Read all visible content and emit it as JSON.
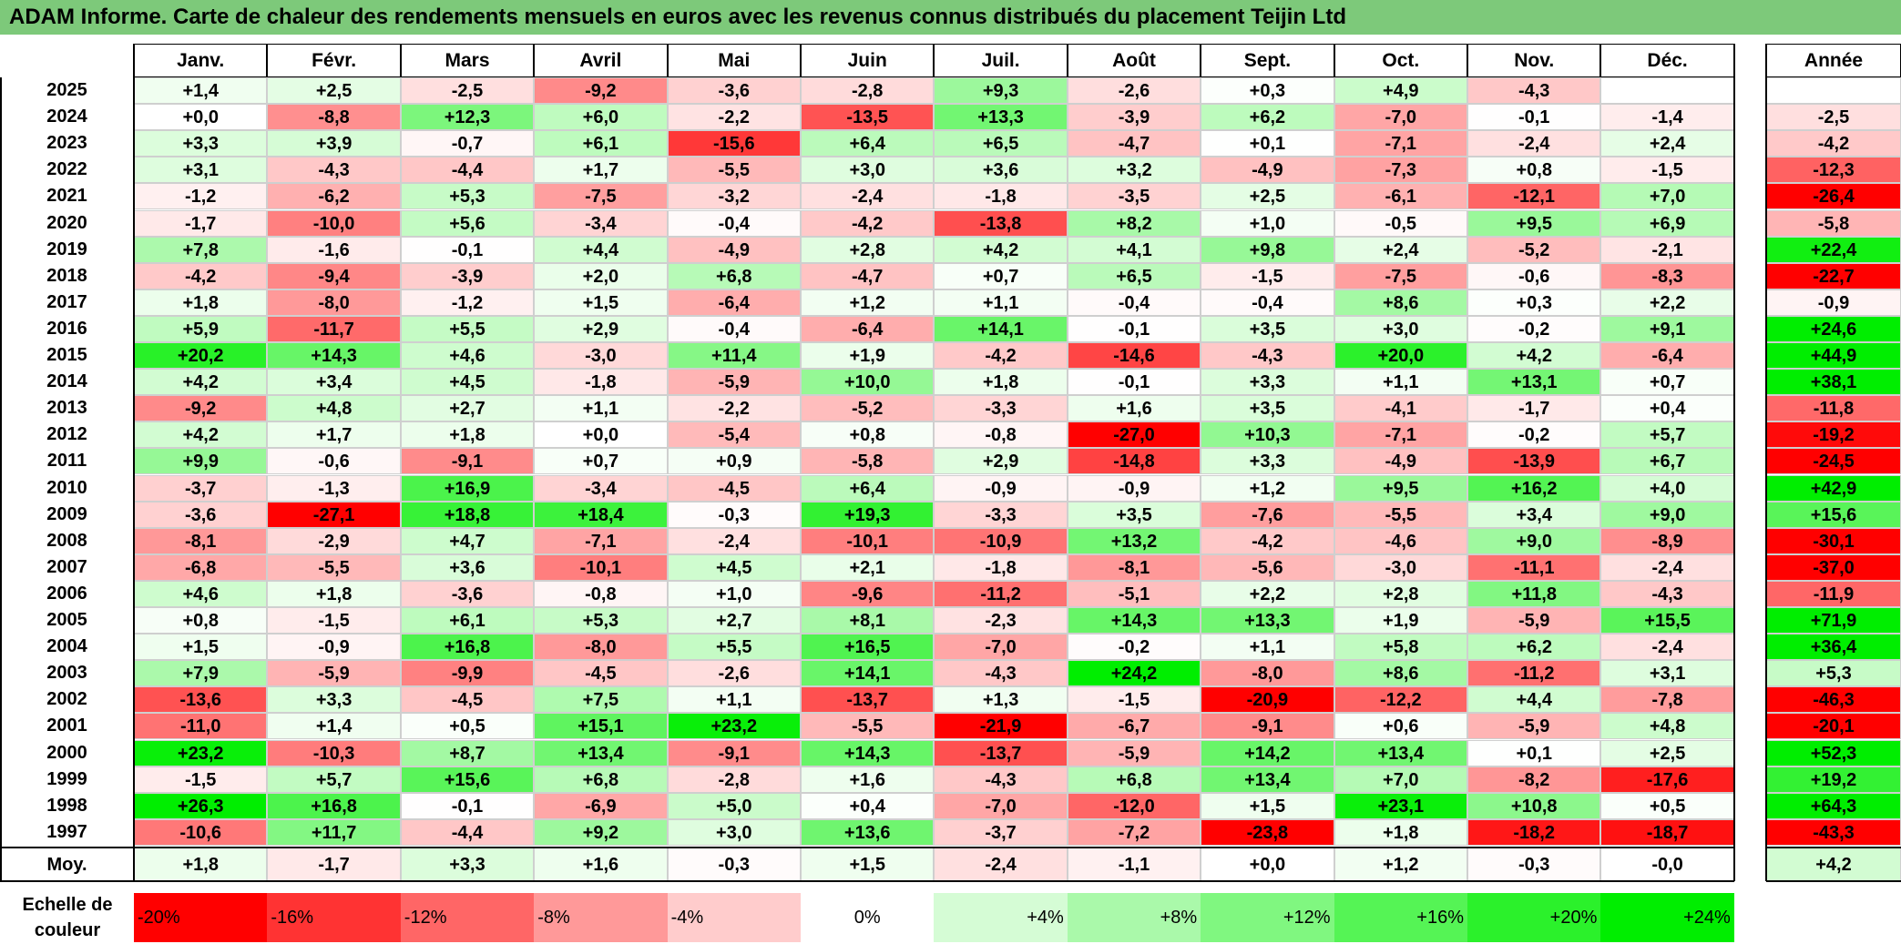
{
  "title": "ADAM Informe. Carte de chaleur des rendements mensuels en euros avec les revenus connus distribués du placement Teijin Ltd",
  "chart_data": {
    "type": "heatmap",
    "title": "ADAM Informe. Carte de chaleur des rendements mensuels en euros avec les revenus connus distribués du placement Teijin Ltd",
    "columns": [
      "Janv.",
      "Févr.",
      "Mars",
      "Avril",
      "Mai",
      "Juin",
      "Juil.",
      "Août",
      "Sept.",
      "Oct.",
      "Nov.",
      "Déc."
    ],
    "annual_header": "Année",
    "rows": [
      {
        "year": "2025",
        "values": [
          "+1,4",
          "+2,5",
          "-2,5",
          "-9,2",
          "-3,6",
          "-2,8",
          "+9,3",
          "-2,6",
          "+0,3",
          "+4,9",
          "-4,3",
          ""
        ],
        "annual": ""
      },
      {
        "year": "2024",
        "values": [
          "+0,0",
          "-8,8",
          "+12,3",
          "+6,0",
          "-2,2",
          "-13,5",
          "+13,3",
          "-3,9",
          "+6,2",
          "-7,0",
          "-0,1",
          "-1,4"
        ],
        "annual": "-2,5"
      },
      {
        "year": "2023",
        "values": [
          "+3,3",
          "+3,9",
          "-0,7",
          "+6,1",
          "-15,6",
          "+6,4",
          "+6,5",
          "-4,7",
          "+0,1",
          "-7,1",
          "-2,4",
          "+2,4"
        ],
        "annual": "-4,2"
      },
      {
        "year": "2022",
        "values": [
          "+3,1",
          "-4,3",
          "-4,4",
          "+1,7",
          "-5,5",
          "+3,0",
          "+3,6",
          "+3,2",
          "-4,9",
          "-7,3",
          "+0,8",
          "-1,5"
        ],
        "annual": "-12,3"
      },
      {
        "year": "2021",
        "values": [
          "-1,2",
          "-6,2",
          "+5,3",
          "-7,5",
          "-3,2",
          "-2,4",
          "-1,8",
          "-3,5",
          "+2,5",
          "-6,1",
          "-12,1",
          "+7,0"
        ],
        "annual": "-26,4"
      },
      {
        "year": "2020",
        "values": [
          "-1,7",
          "-10,0",
          "+5,6",
          "-3,4",
          "-0,4",
          "-4,2",
          "-13,8",
          "+8,2",
          "+1,0",
          "-0,5",
          "+9,5",
          "+6,9"
        ],
        "annual": "-5,8"
      },
      {
        "year": "2019",
        "values": [
          "+7,8",
          "-1,6",
          "-0,1",
          "+4,4",
          "-4,9",
          "+2,8",
          "+4,2",
          "+4,1",
          "+9,8",
          "+2,4",
          "-5,2",
          "-2,1"
        ],
        "annual": "+22,4"
      },
      {
        "year": "2018",
        "values": [
          "-4,2",
          "-9,4",
          "-3,9",
          "+2,0",
          "+6,8",
          "-4,7",
          "+0,7",
          "+6,5",
          "-1,5",
          "-7,5",
          "-0,6",
          "-8,3"
        ],
        "annual": "-22,7"
      },
      {
        "year": "2017",
        "values": [
          "+1,8",
          "-8,0",
          "-1,2",
          "+1,5",
          "-6,4",
          "+1,2",
          "+1,1",
          "-0,4",
          "-0,4",
          "+8,6",
          "+0,3",
          "+2,2"
        ],
        "annual": "-0,9"
      },
      {
        "year": "2016",
        "values": [
          "+5,9",
          "-11,7",
          "+5,5",
          "+2,9",
          "-0,4",
          "-6,4",
          "+14,1",
          "-0,1",
          "+3,5",
          "+3,0",
          "-0,2",
          "+9,1"
        ],
        "annual": "+24,6"
      },
      {
        "year": "2015",
        "values": [
          "+20,2",
          "+14,3",
          "+4,6",
          "-3,0",
          "+11,4",
          "+1,9",
          "-4,2",
          "-14,6",
          "-4,3",
          "+20,0",
          "+4,2",
          "-6,4"
        ],
        "annual": "+44,9"
      },
      {
        "year": "2014",
        "values": [
          "+4,2",
          "+3,4",
          "+4,5",
          "-1,8",
          "-5,9",
          "+10,0",
          "+1,8",
          "-0,1",
          "+3,3",
          "+1,1",
          "+13,1",
          "+0,7"
        ],
        "annual": "+38,1"
      },
      {
        "year": "2013",
        "values": [
          "-9,2",
          "+4,8",
          "+2,7",
          "+1,1",
          "-2,2",
          "-5,2",
          "-3,3",
          "+1,6",
          "+3,5",
          "-4,1",
          "-1,7",
          "+0,4"
        ],
        "annual": "-11,8"
      },
      {
        "year": "2012",
        "values": [
          "+4,2",
          "+1,7",
          "+1,8",
          "+0,0",
          "-5,4",
          "+0,8",
          "-0,8",
          "-27,0",
          "+10,3",
          "-7,1",
          "-0,2",
          "+5,7"
        ],
        "annual": "-19,2"
      },
      {
        "year": "2011",
        "values": [
          "+9,9",
          "-0,6",
          "-9,1",
          "+0,7",
          "+0,9",
          "-5,8",
          "+2,9",
          "-14,8",
          "+3,3",
          "-4,9",
          "-13,9",
          "+6,7"
        ],
        "annual": "-24,5"
      },
      {
        "year": "2010",
        "values": [
          "-3,7",
          "-1,3",
          "+16,9",
          "-3,4",
          "-4,5",
          "+6,4",
          "-0,9",
          "-0,9",
          "+1,2",
          "+9,5",
          "+16,2",
          "+4,0"
        ],
        "annual": "+42,9"
      },
      {
        "year": "2009",
        "values": [
          "-3,6",
          "-27,1",
          "+18,8",
          "+18,4",
          "-0,3",
          "+19,3",
          "-3,3",
          "+3,5",
          "-7,6",
          "-5,5",
          "+3,4",
          "+9,0"
        ],
        "annual": "+15,6"
      },
      {
        "year": "2008",
        "values": [
          "-8,1",
          "-2,9",
          "+4,7",
          "-7,1",
          "-2,4",
          "-10,1",
          "-10,9",
          "+13,2",
          "-4,2",
          "-4,6",
          "+9,0",
          "-8,9"
        ],
        "annual": "-30,1"
      },
      {
        "year": "2007",
        "values": [
          "-6,8",
          "-5,5",
          "+3,6",
          "-10,1",
          "+4,5",
          "+2,1",
          "-1,8",
          "-8,1",
          "-5,6",
          "-3,0",
          "-11,1",
          "-2,4"
        ],
        "annual": "-37,0"
      },
      {
        "year": "2006",
        "values": [
          "+4,6",
          "+1,8",
          "-3,6",
          "-0,8",
          "+1,0",
          "-9,6",
          "-11,2",
          "-5,1",
          "+2,2",
          "+2,8",
          "+11,8",
          "-4,3"
        ],
        "annual": "-11,9"
      },
      {
        "year": "2005",
        "values": [
          "+0,8",
          "-1,5",
          "+6,1",
          "+5,3",
          "+2,7",
          "+8,1",
          "-2,3",
          "+14,3",
          "+13,3",
          "+1,9",
          "-5,9",
          "+15,5"
        ],
        "annual": "+71,9"
      },
      {
        "year": "2004",
        "values": [
          "+1,5",
          "-0,9",
          "+16,8",
          "-8,0",
          "+5,5",
          "+16,5",
          "-7,0",
          "-0,2",
          "+1,1",
          "+5,8",
          "+6,2",
          "-2,4"
        ],
        "annual": "+36,4"
      },
      {
        "year": "2003",
        "values": [
          "+7,9",
          "-5,9",
          "-9,9",
          "-4,5",
          "-2,6",
          "+14,1",
          "-4,3",
          "+24,2",
          "-8,0",
          "+8,6",
          "-11,2",
          "+3,1"
        ],
        "annual": "+5,3"
      },
      {
        "year": "2002",
        "values": [
          "-13,6",
          "+3,3",
          "-4,5",
          "+7,5",
          "+1,1",
          "-13,7",
          "+1,3",
          "-1,5",
          "-20,9",
          "-12,2",
          "+4,4",
          "-7,8"
        ],
        "annual": "-46,3"
      },
      {
        "year": "2001",
        "values": [
          "-11,0",
          "+1,4",
          "+0,5",
          "+15,1",
          "+23,2",
          "-5,5",
          "-21,9",
          "-6,7",
          "-9,1",
          "+0,6",
          "-5,9",
          "+4,8"
        ],
        "annual": "-20,1"
      },
      {
        "year": "2000",
        "values": [
          "+23,2",
          "-10,3",
          "+8,7",
          "+13,4",
          "-9,1",
          "+14,3",
          "-13,7",
          "-5,9",
          "+14,2",
          "+13,4",
          "+0,1",
          "+2,5"
        ],
        "annual": "+52,3"
      },
      {
        "year": "1999",
        "values": [
          "-1,5",
          "+5,7",
          "+15,6",
          "+6,8",
          "-2,8",
          "+1,6",
          "-4,3",
          "+6,8",
          "+13,4",
          "+7,0",
          "-8,2",
          "-17,6"
        ],
        "annual": "+19,2"
      },
      {
        "year": "1998",
        "values": [
          "+26,3",
          "+16,8",
          "-0,1",
          "-6,9",
          "+5,0",
          "+0,4",
          "-7,0",
          "-12,0",
          "+1,5",
          "+23,1",
          "+10,8",
          "+0,5"
        ],
        "annual": "+64,3"
      },
      {
        "year": "1997",
        "values": [
          "-10,6",
          "+11,7",
          "-4,4",
          "+9,2",
          "+3,0",
          "+13,6",
          "-3,7",
          "-7,2",
          "-23,8",
          "+1,8",
          "-18,2",
          "-18,7"
        ],
        "annual": "-43,3"
      }
    ],
    "average": {
      "label": "Moy.",
      "values": [
        "+1,8",
        "-1,7",
        "+3,3",
        "+1,6",
        "-0,3",
        "+1,5",
        "-2,4",
        "-1,1",
        "+0,0",
        "+1,2",
        "-0,3",
        "-0,0"
      ],
      "annual": "+4,2"
    },
    "color_scale": {
      "label": "Echelle de couleur",
      "steps": [
        "-20%",
        "-16%",
        "-12%",
        "-8%",
        "-4%",
        "0%",
        "+4%",
        "+8%",
        "+12%",
        "+16%",
        "+20%",
        "+24%"
      ],
      "negative_color": "#ff0000",
      "neutral_color": "#ffffff",
      "positive_color": "#00ee00"
    }
  }
}
